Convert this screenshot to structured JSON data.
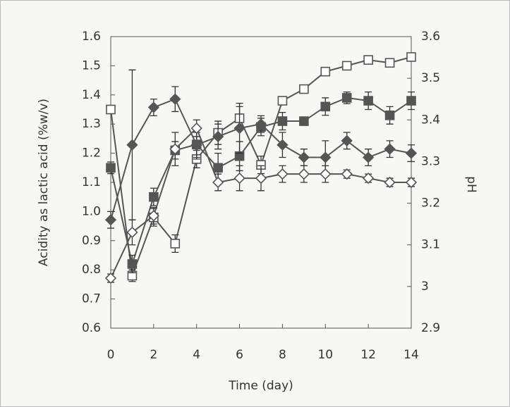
{
  "chart_data": {
    "type": "line",
    "x_label": "Time (day)",
    "y_label": "Acidity as lactic acid (%w/v)",
    "y2_label": "pH",
    "x": [
      0,
      1,
      2,
      3,
      4,
      5,
      6,
      7,
      8,
      9,
      10,
      11,
      12,
      13,
      14
    ],
    "xlim": [
      0,
      14
    ],
    "xticks": [
      0,
      2,
      4,
      6,
      8,
      10,
      12,
      14
    ],
    "ylim": [
      0.6,
      1.6
    ],
    "yticks": [
      0.6,
      0.7,
      0.8,
      0.9,
      {
        "value": 1,
        "label": "1.0"
      },
      1.1,
      1.2,
      1.3,
      1.4,
      1.5,
      1.6
    ],
    "y2lim": [
      2.9,
      3.6
    ],
    "y2ticks": [
      2.9,
      3,
      3.1,
      3.2,
      3.3,
      3.4,
      3.5,
      3.6
    ],
    "series": [
      {
        "color": "#555555",
        "marker": "square",
        "filled": false,
        "values": [
          1.35,
          0.78,
          0.98,
          0.89,
          1.18,
          1.27,
          1.32,
          1.16,
          1.38,
          1.42,
          1.48,
          1.5,
          1.52,
          1.51,
          1.53
        ],
        "errors": [
          0.01,
          0.02,
          0.03,
          0.03,
          0.03,
          0.04,
          0.04,
          0.03,
          0.01,
          0.01,
          0.01,
          0.01,
          0.01,
          0.01,
          0.01
        ]
      },
      {
        "color": "#555555",
        "marker": "square",
        "filled": true,
        "values": [
          1.15,
          0.82,
          1.05,
          1.21,
          1.23,
          1.15,
          1.19,
          1.29,
          1.31,
          1.31,
          1.36,
          1.39,
          1.38,
          1.33,
          1.38
        ],
        "errors": [
          0.02,
          0.03,
          0.03,
          0.03,
          0.05,
          0.05,
          0.05,
          0.03,
          0.03,
          0.01,
          0.03,
          0.02,
          0.03,
          0.03,
          0.03
        ]
      },
      {
        "color": "#555555",
        "marker": "diamond",
        "filled": true,
        "axis": "y2",
        "values": [
          3.16,
          3.34,
          3.43,
          3.45,
          3.34,
          3.36,
          3.38,
          3.39,
          3.34,
          3.31,
          3.31,
          3.35,
          3.31,
          3.33,
          3.32
        ],
        "errors": [
          0.02,
          0.18,
          0.02,
          0.03,
          0.03,
          0.03,
          0.06,
          0.02,
          0.03,
          0.02,
          0.04,
          0.02,
          0.02,
          0.02,
          0.02
        ]
      },
      {
        "color": "#555555",
        "marker": "diamond",
        "filled": false,
        "axis": "y2",
        "values": [
          3.02,
          3.13,
          3.17,
          3.33,
          3.38,
          3.25,
          3.26,
          3.26,
          3.27,
          3.27,
          3.27,
          3.27,
          3.26,
          3.25,
          3.25
        ],
        "errors": [
          0.01,
          0.03,
          0.02,
          0.04,
          0.02,
          0.02,
          0.03,
          0.03,
          0.02,
          0.02,
          0.02,
          0.01,
          0.01,
          0.01,
          0.01
        ]
      }
    ]
  }
}
